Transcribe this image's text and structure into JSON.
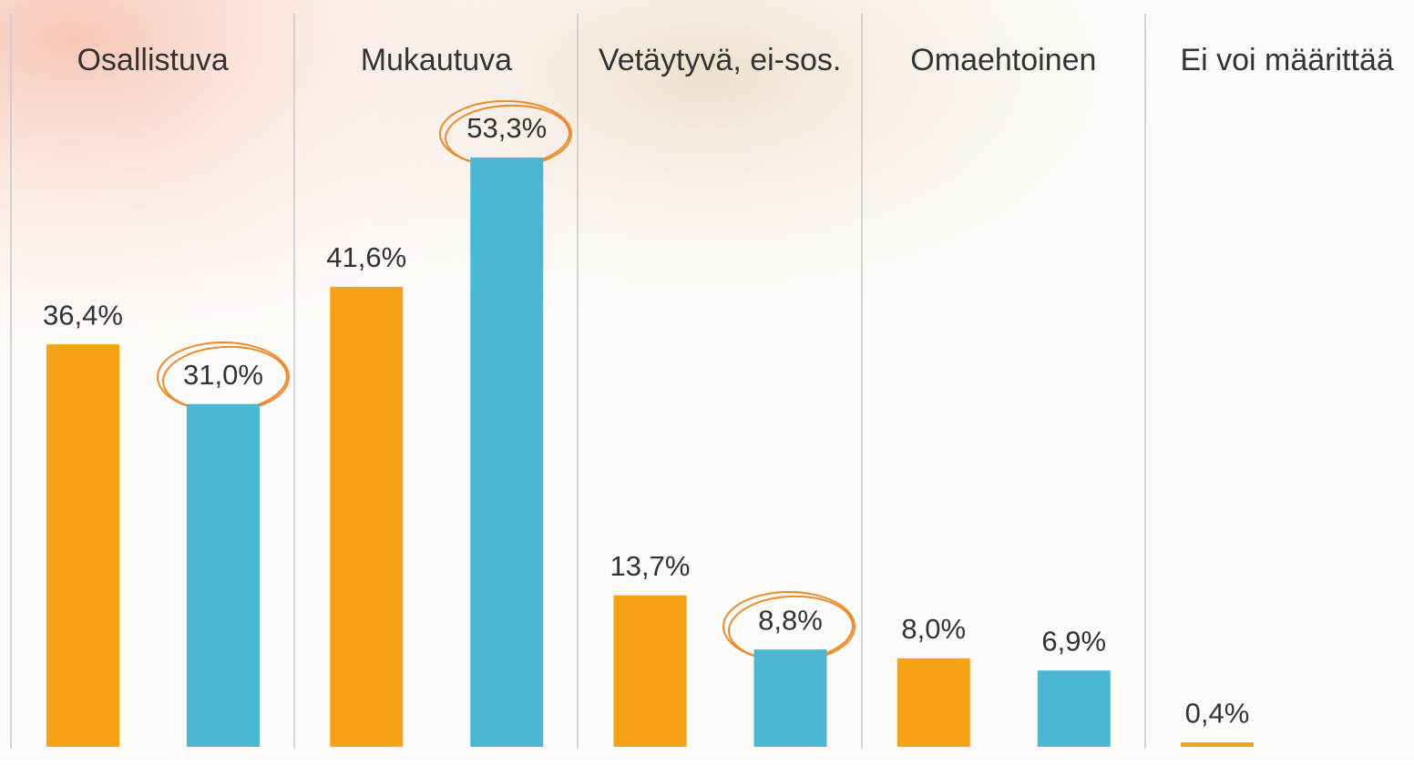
{
  "chart_data": {
    "type": "bar",
    "categories": [
      "Osallistuva",
      "Mukautuva",
      "Vetäytyvä, ei-sos.",
      "Omaehtoinen",
      "Ei voi määrittää"
    ],
    "series": [
      {
        "color": "#f5a314",
        "values": [
          36.4,
          41.6,
          13.7,
          8.0,
          0.4
        ],
        "value_labels": [
          "36,4%",
          "41,6%",
          "13,7%",
          "8,0%",
          "0,4%"
        ]
      },
      {
        "color": "#4bb7d1",
        "values": [
          31.0,
          53.3,
          8.8,
          6.9,
          null
        ],
        "value_labels": [
          "31,0%",
          "53,3%",
          "8,8%",
          "6,9%",
          null
        ]
      }
    ]
  }
}
